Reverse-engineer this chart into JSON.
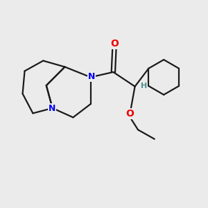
{
  "background_color": "#ebebeb",
  "bond_color": "#1a1a1a",
  "N_color": "#0000ee",
  "O_color": "#ee0000",
  "H_color": "#4a9090",
  "line_width": 1.6,
  "figsize": [
    3.0,
    3.0
  ],
  "dpi": 100,
  "xlim": [
    0,
    10
  ],
  "ylim": [
    0,
    10
  ],
  "font_size": 9
}
